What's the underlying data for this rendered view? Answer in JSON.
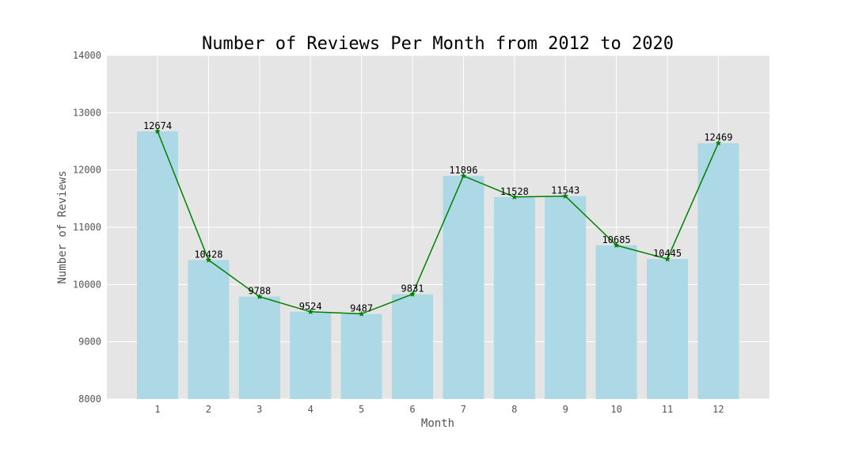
{
  "chart_data": {
    "type": "bar",
    "title": "Number of Reviews Per Month from 2012 to 2020",
    "xlabel": "Month",
    "ylabel": "Number of Reviews",
    "categories": [
      "1",
      "2",
      "3",
      "4",
      "5",
      "6",
      "7",
      "8",
      "9",
      "10",
      "11",
      "12"
    ],
    "values": [
      12674,
      10428,
      9788,
      9524,
      9487,
      9831,
      11896,
      11528,
      11543,
      10685,
      10445,
      12469
    ],
    "ylim": [
      8000,
      14000
    ],
    "yticks": [
      8000,
      9000,
      10000,
      11000,
      12000,
      13000,
      14000
    ],
    "grid": true,
    "overlay": {
      "type": "line",
      "marker": "star"
    },
    "colors": {
      "bar": "#add8e6",
      "line": "#008000",
      "plot_background": "#e5e5e5",
      "grid": "#ffffff"
    }
  }
}
